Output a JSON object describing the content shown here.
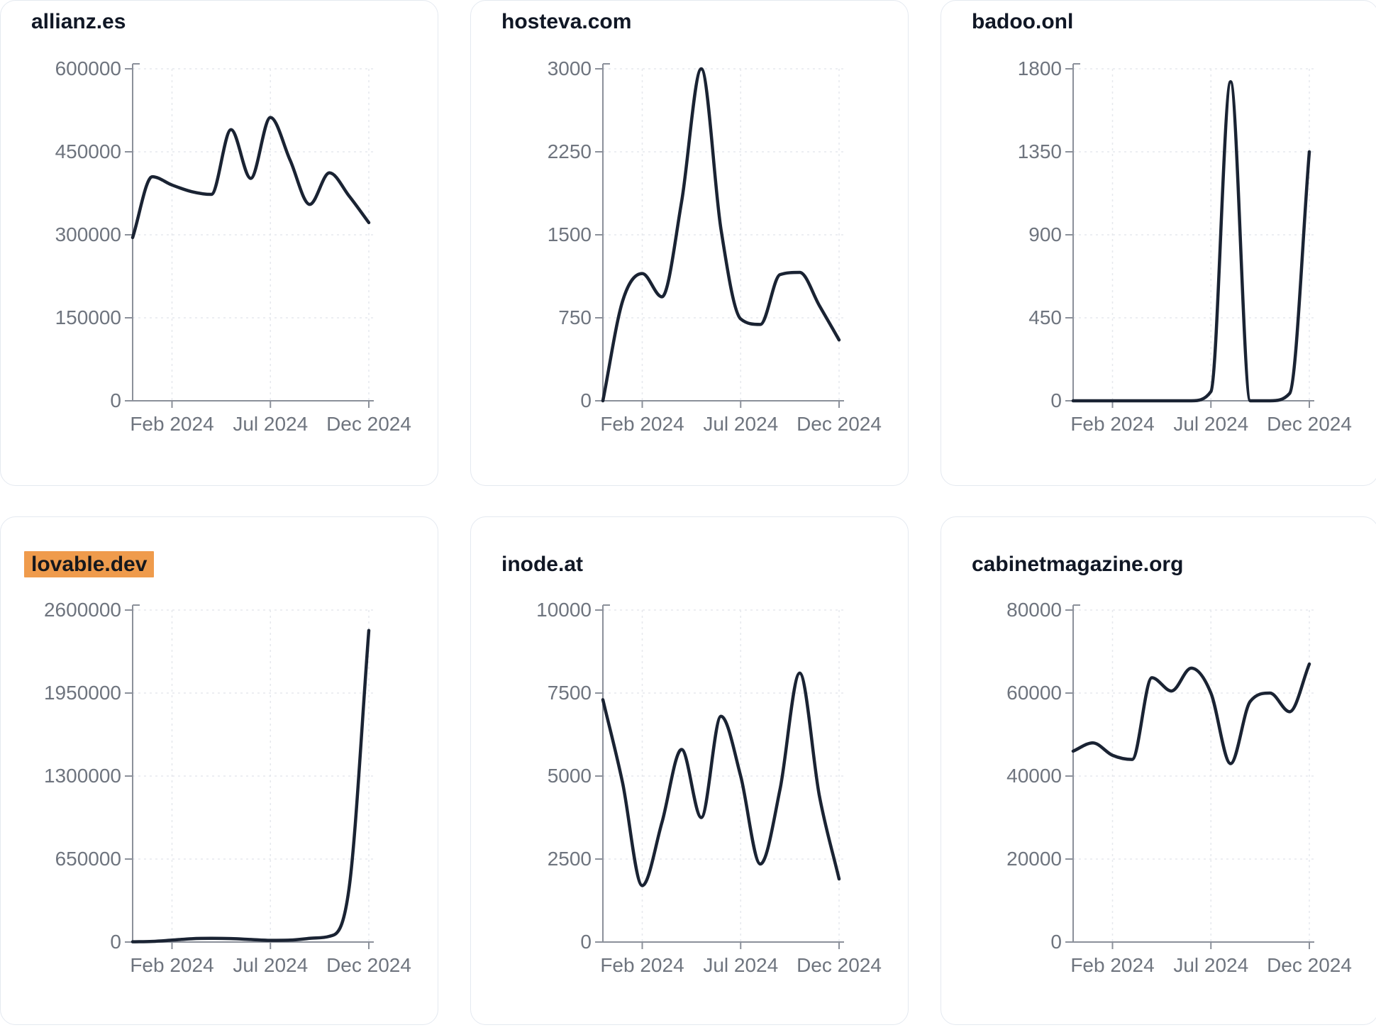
{
  "page": {
    "background": "#ffffff",
    "description_period": "Dec 2023 - Dec 2024 monthly traffic trend cards"
  },
  "style": {
    "line_color": "#1a2333",
    "title_color": "#101725",
    "label_color": "#6e747e",
    "axis_color": "#8b909a",
    "gridline_color": "#e6e8ed",
    "card_border_color": "#e4e9f0",
    "highlight_bg_color": "#ef9b4c",
    "highlight_text_color": "#16181d"
  },
  "shared": {
    "x_tick_labels": [
      "Feb 2024",
      "Jul 2024",
      "Dec 2024"
    ],
    "months": [
      "Dec 2023",
      "Jan 2024",
      "Feb 2024",
      "Mar 2024",
      "Apr 2024",
      "May 2024",
      "Jun 2024",
      "Jul 2024",
      "Aug 2024",
      "Sep 2024",
      "Oct 2024",
      "Nov 2024",
      "Dec 2024"
    ]
  },
  "chart_data": [
    {
      "type": "line",
      "title": "allianz.es",
      "highlighted": false,
      "x": [
        "Dec 2023",
        "Jan 2024",
        "Feb 2024",
        "Mar 2024",
        "Apr 2024",
        "May 2024",
        "Jun 2024",
        "Jul 2024",
        "Aug 2024",
        "Sep 2024",
        "Oct 2024",
        "Nov 2024",
        "Dec 2024"
      ],
      "values": [
        295000,
        405000,
        390000,
        378000,
        373000,
        490000,
        402000,
        512000,
        435000,
        355000,
        412000,
        370000,
        322000
      ],
      "ylim": [
        0,
        600000
      ],
      "y_ticks": [
        0,
        150000,
        300000,
        450000,
        600000
      ],
      "y_tick_labels": [
        "0",
        "150000",
        "300000",
        "450000",
        "600000"
      ],
      "x_tick_labels": [
        "Feb 2024",
        "Jul 2024",
        "Dec 2024"
      ],
      "grid": "dashed"
    },
    {
      "type": "line",
      "title": "hosteva.com",
      "highlighted": false,
      "x": [
        "Dec 2023",
        "Jan 2024",
        "Feb 2024",
        "Mar 2024",
        "Apr 2024",
        "May 2024",
        "Jun 2024",
        "Jul 2024",
        "Aug 2024",
        "Sep 2024",
        "Oct 2024",
        "Nov 2024",
        "Dec 2024"
      ],
      "values": [
        0,
        900,
        1150,
        940,
        1800,
        3000,
        1550,
        740,
        690,
        1140,
        1160,
        860,
        550
      ],
      "ylim": [
        0,
        3000
      ],
      "y_ticks": [
        0,
        750,
        1500,
        2250,
        3000
      ],
      "y_tick_labels": [
        "0",
        "750",
        "1500",
        "2250",
        "3000"
      ],
      "x_tick_labels": [
        "Feb 2024",
        "Jul 2024",
        "Dec 2024"
      ],
      "grid": "dashed"
    },
    {
      "type": "line",
      "title": "badoo.onl",
      "highlighted": false,
      "x": [
        "Dec 2023",
        "Jan 2024",
        "Feb 2024",
        "Mar 2024",
        "Apr 2024",
        "May 2024",
        "Jun 2024",
        "Jul 2024",
        "Aug 2024",
        "Sep 2024",
        "Oct 2024",
        "Nov 2024",
        "Dec 2024"
      ],
      "values": [
        0,
        0,
        0,
        0,
        0,
        0,
        0,
        50,
        1730,
        0,
        0,
        40,
        1350
      ],
      "ylim": [
        0,
        1800
      ],
      "y_ticks": [
        0,
        450,
        900,
        1350,
        1800
      ],
      "y_tick_labels": [
        "0",
        "450",
        "900",
        "1350",
        "1800"
      ],
      "x_tick_labels": [
        "Feb 2024",
        "Jul 2024",
        "Dec 2024"
      ],
      "grid": "dashed"
    },
    {
      "type": "line",
      "title": "lovable.dev",
      "highlighted": true,
      "x": [
        "Dec 2023",
        "Jan 2024",
        "Feb 2024",
        "Mar 2024",
        "Apr 2024",
        "May 2024",
        "Jun 2024",
        "Jul 2024",
        "Aug 2024",
        "Sep 2024",
        "Oct 2024",
        "Nov 2024",
        "Dec 2024"
      ],
      "values": [
        2000,
        5000,
        15000,
        26000,
        29000,
        27000,
        20000,
        13000,
        15000,
        29000,
        45000,
        425000,
        2440000
      ],
      "ylim": [
        0,
        2600000
      ],
      "y_ticks": [
        0,
        650000,
        1300000,
        1950000,
        2600000
      ],
      "y_tick_labels": [
        "0",
        "650000",
        "1300000",
        "1950000",
        "2600000"
      ],
      "x_tick_labels": [
        "Feb 2024",
        "Jul 2024",
        "Dec 2024"
      ],
      "grid": "dashed"
    },
    {
      "type": "line",
      "title": "inode.at",
      "highlighted": false,
      "x": [
        "Dec 2023",
        "Jan 2024",
        "Feb 2024",
        "Mar 2024",
        "Apr 2024",
        "May 2024",
        "Jun 2024",
        "Jul 2024",
        "Aug 2024",
        "Sep 2024",
        "Oct 2024",
        "Nov 2024",
        "Dec 2024"
      ],
      "values": [
        7300,
        4800,
        1700,
        3600,
        5800,
        3750,
        6800,
        5000,
        2350,
        4600,
        8100,
        4400,
        1900
      ],
      "ylim": [
        0,
        10000
      ],
      "y_ticks": [
        0,
        2500,
        5000,
        7500,
        10000
      ],
      "y_tick_labels": [
        "0",
        "2500",
        "5000",
        "7500",
        "10000"
      ],
      "x_tick_labels": [
        "Feb 2024",
        "Jul 2024",
        "Dec 2024"
      ],
      "grid": "dashed"
    },
    {
      "type": "line",
      "title": "cabinetmagazine.org",
      "highlighted": false,
      "x": [
        "Dec 2023",
        "Jan 2024",
        "Feb 2024",
        "Mar 2024",
        "Apr 2024",
        "May 2024",
        "Jun 2024",
        "Jul 2024",
        "Aug 2024",
        "Sep 2024",
        "Oct 2024",
        "Nov 2024",
        "Dec 2024"
      ],
      "values": [
        46000,
        48000,
        45000,
        44000,
        63700,
        60500,
        66000,
        60000,
        43000,
        58000,
        60000,
        55500,
        67000
      ],
      "ylim": [
        0,
        80000
      ],
      "y_ticks": [
        0,
        20000,
        40000,
        60000,
        80000
      ],
      "y_tick_labels": [
        "0",
        "20000",
        "40000",
        "60000",
        "80000"
      ],
      "x_tick_labels": [
        "Feb 2024",
        "Jul 2024",
        "Dec 2024"
      ],
      "grid": "dashed"
    }
  ]
}
